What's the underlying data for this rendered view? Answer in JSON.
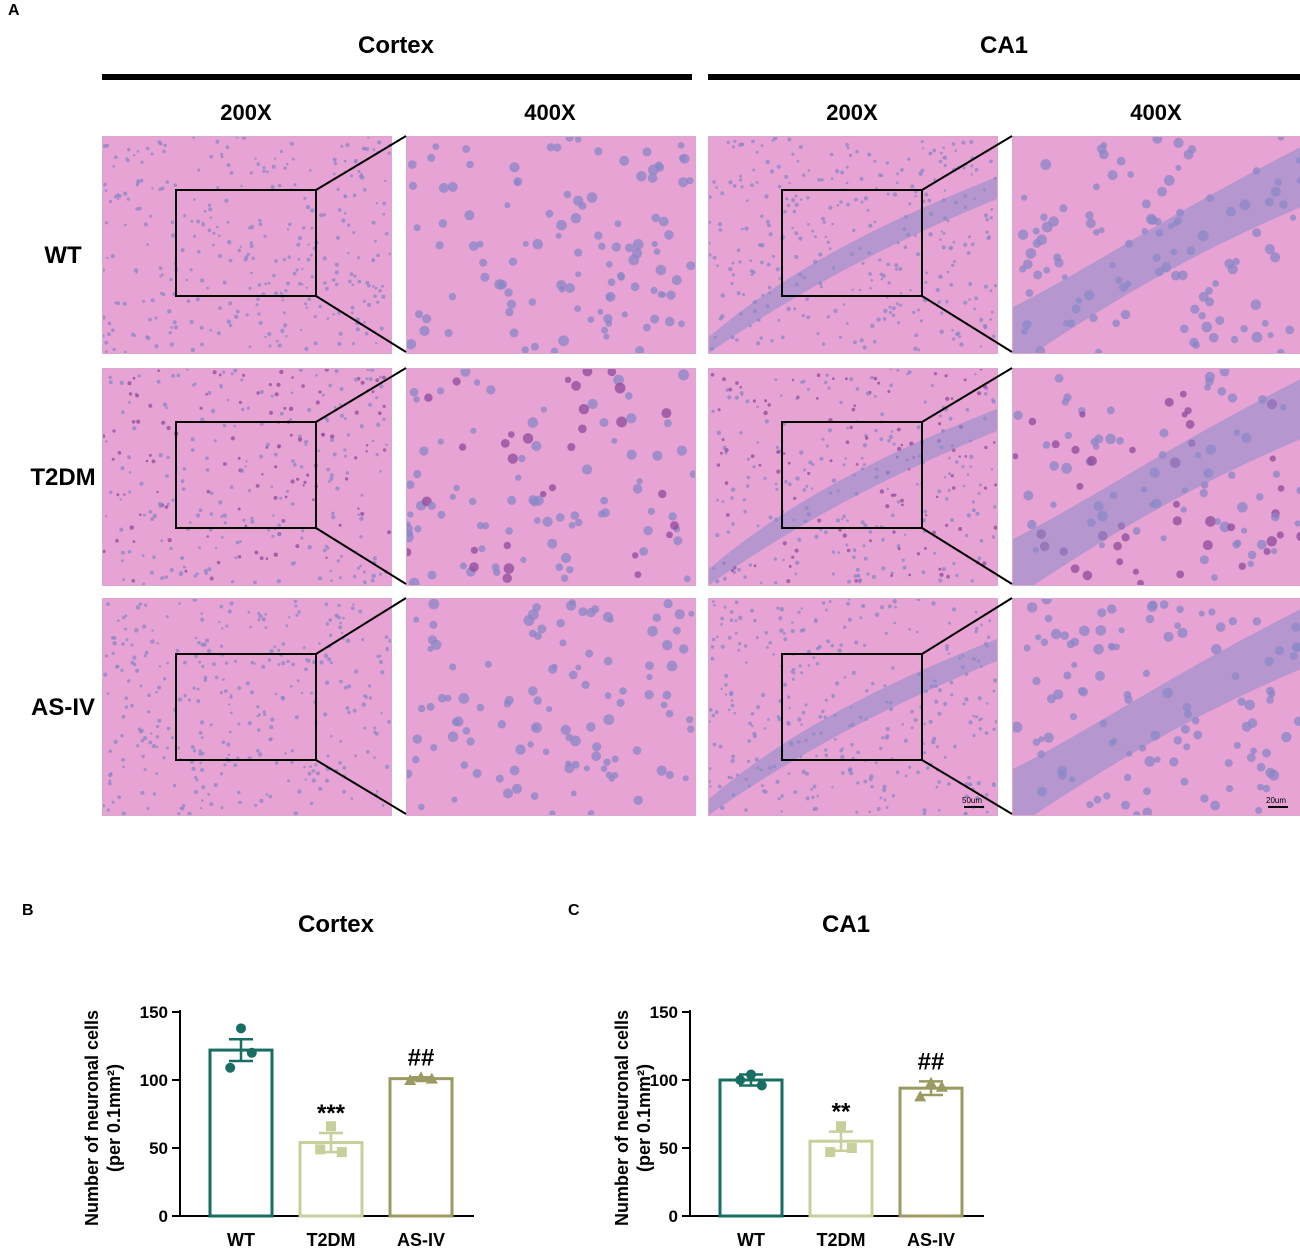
{
  "panels": {
    "a": "A",
    "b": "B",
    "c": "C"
  },
  "histology": {
    "regions": [
      "Cortex",
      "CA1"
    ],
    "magnifications": [
      "200X",
      "400X",
      "200X",
      "400X"
    ],
    "rows": [
      "WT",
      "T2DM",
      "AS-IV"
    ],
    "scale_bars": [
      "50um",
      "20um"
    ],
    "stain_color": "#e6a3d3",
    "nuclei_color": "#8a86c6"
  },
  "chart_data": [
    {
      "type": "bar",
      "title": "Cortex",
      "ylabel_line1": "Number of neuronal cells",
      "ylabel_line2": "(per 0.1mm²)",
      "categories": [
        "WT",
        "T2DM",
        "AS-IV"
      ],
      "values": [
        122,
        54,
        101
      ],
      "errors": [
        8,
        7,
        1
      ],
      "points": [
        [
          138,
          120,
          109
        ],
        [
          66,
          47,
          49
        ],
        [
          102,
          101,
          100
        ]
      ],
      "markers": [
        "circle",
        "square",
        "triangle"
      ],
      "colors": [
        "#186e62",
        "#c8cf9a",
        "#9a9a62"
      ],
      "annotations": [
        "",
        "***",
        "##"
      ],
      "ylim": [
        0,
        150
      ],
      "yticks": [
        0,
        50,
        100,
        150
      ],
      "grid": false
    },
    {
      "type": "bar",
      "title": "CA1",
      "ylabel_line1": "Number of neuronal cells",
      "ylabel_line2": "(per 0.1mm²)",
      "categories": [
        "WT",
        "T2DM",
        "AS-IV"
      ],
      "values": [
        100,
        55,
        94
      ],
      "errors": [
        4,
        7,
        5
      ],
      "points": [
        [
          104,
          96,
          100
        ],
        [
          66,
          50,
          47
        ],
        [
          98,
          95,
          88
        ]
      ],
      "markers": [
        "circle",
        "square",
        "triangle"
      ],
      "colors": [
        "#186e62",
        "#c8cf9a",
        "#9a9a62"
      ],
      "annotations": [
        "",
        "**",
        "##"
      ],
      "ylim": [
        0,
        150
      ],
      "yticks": [
        0,
        50,
        100,
        150
      ],
      "grid": false
    }
  ]
}
